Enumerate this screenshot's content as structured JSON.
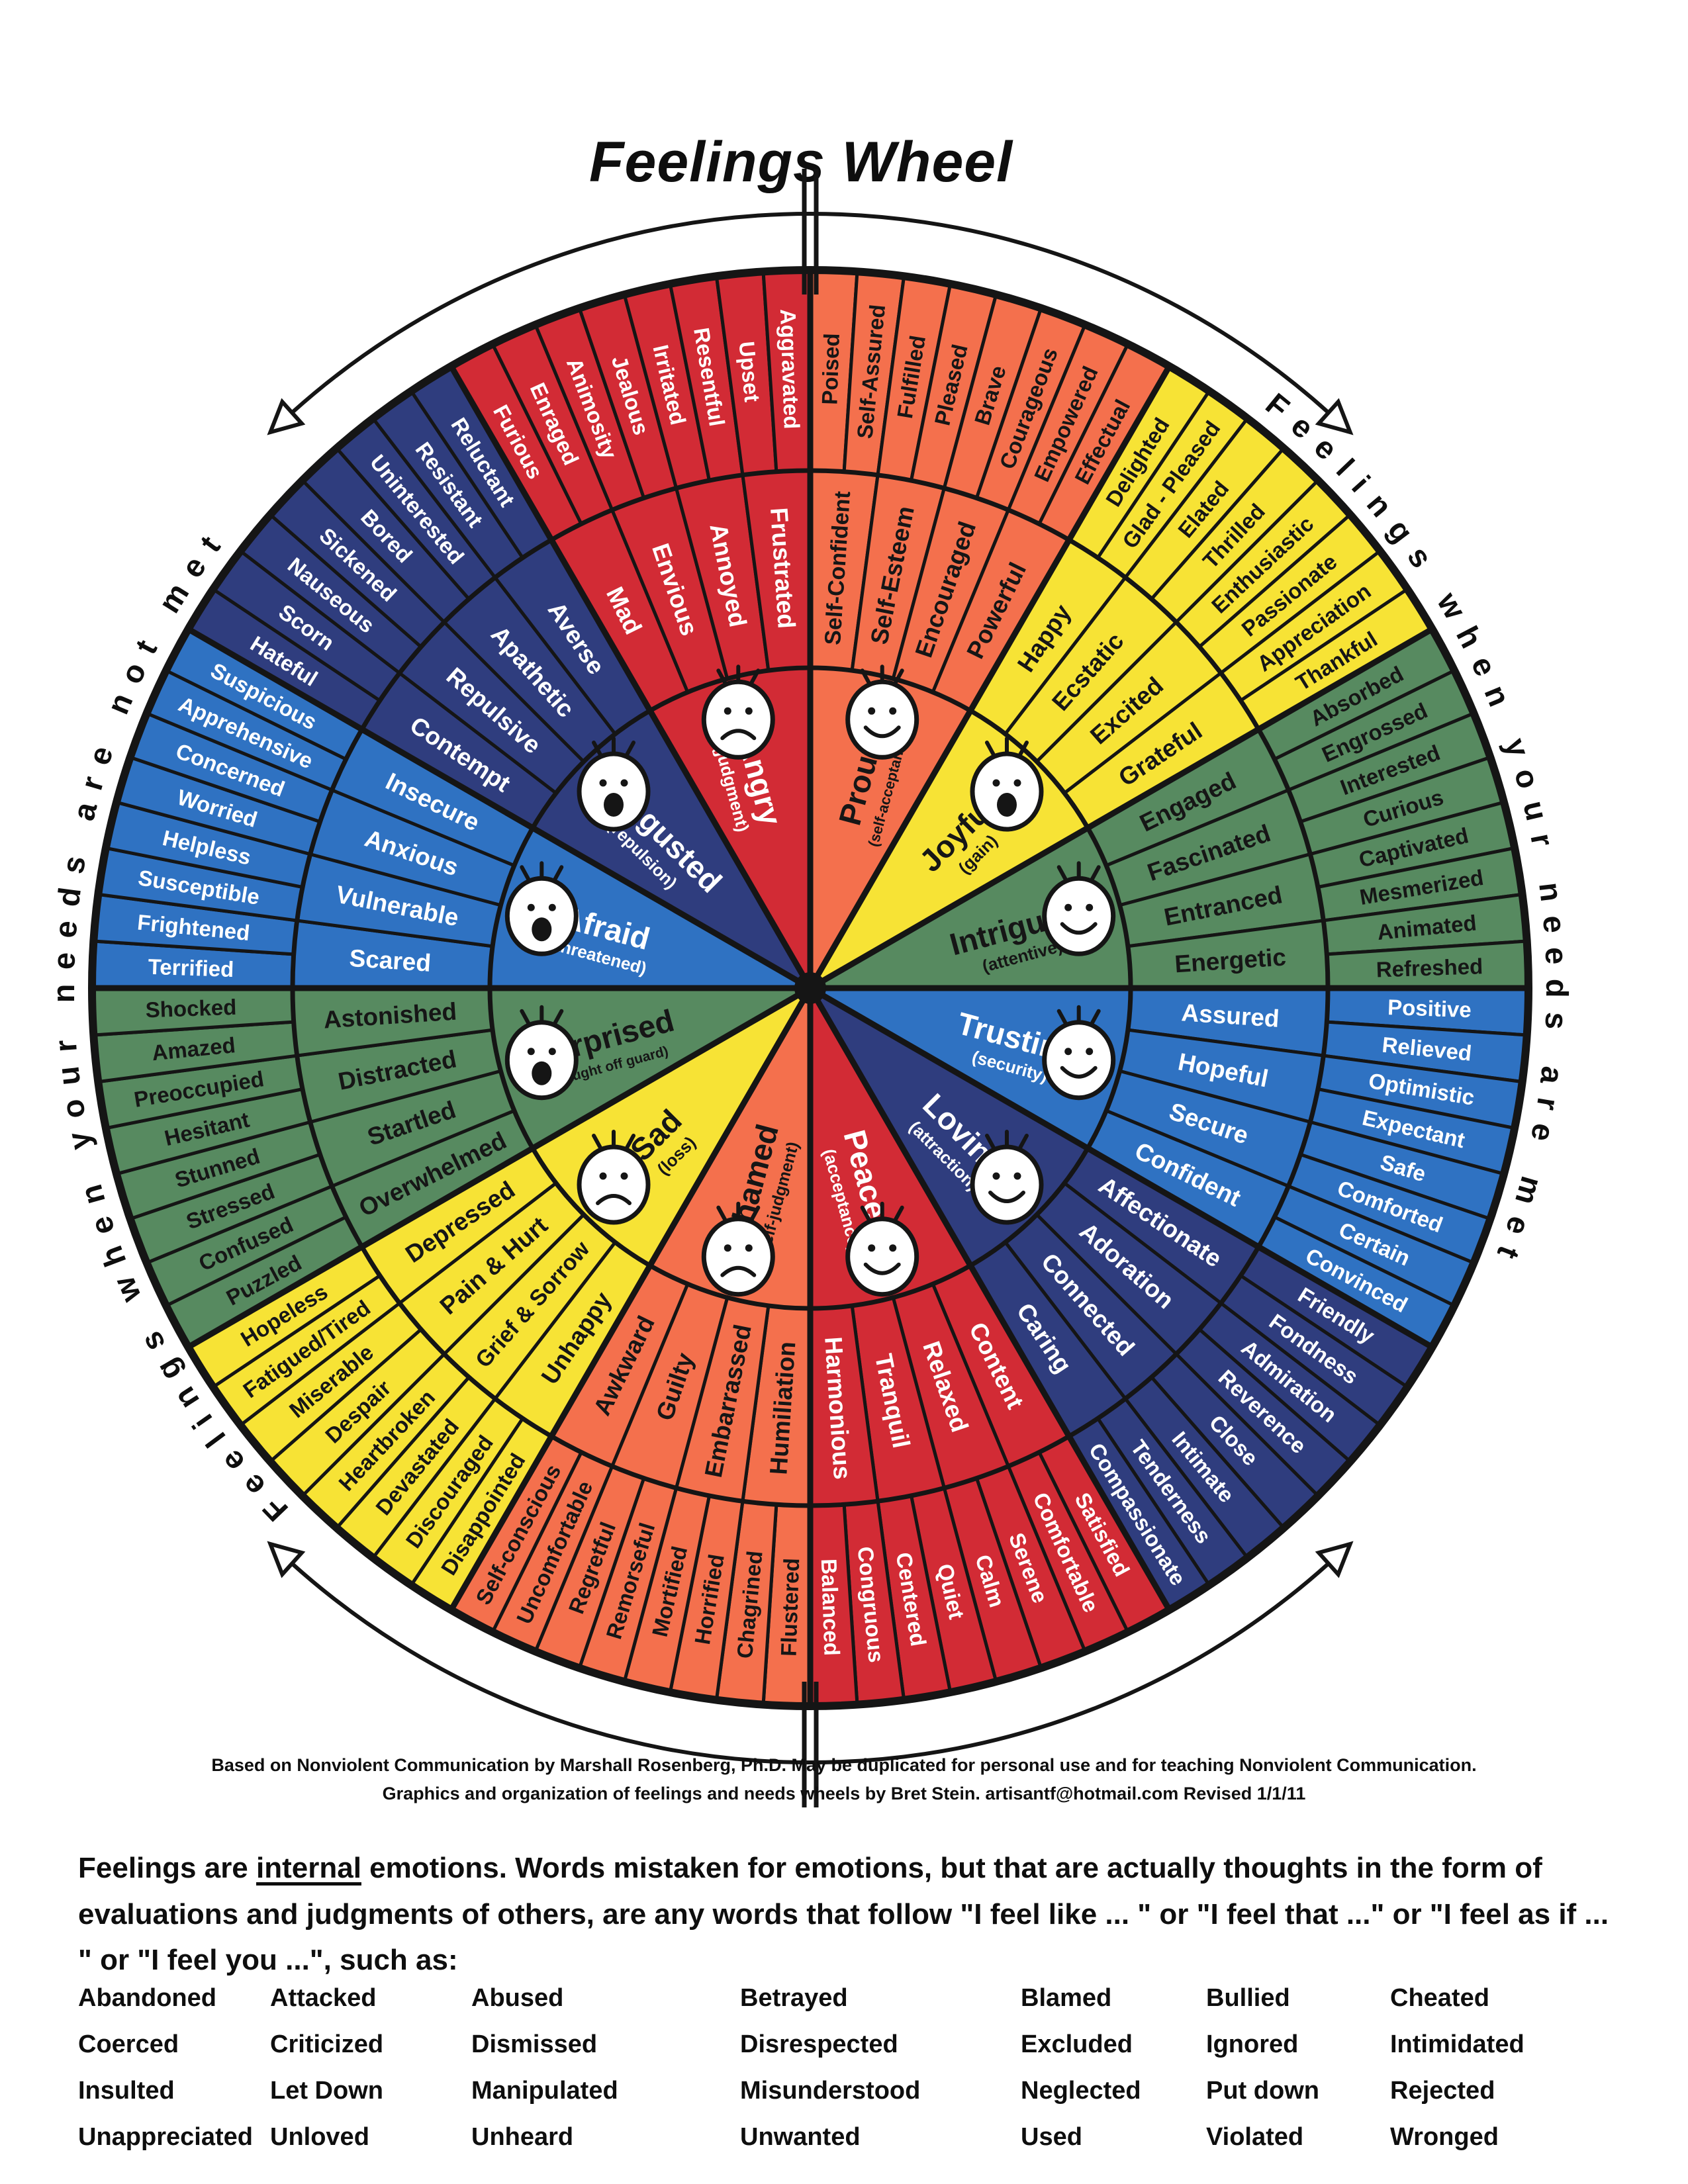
{
  "title": "Feelings Wheel",
  "left_arc_label": "Feelings when your needs are not met",
  "right_arc_label": "Feelings when your needs are met",
  "colors": {
    "red": "#D22B35",
    "orange": "#F4704D",
    "yellow": "#F7E335",
    "green": "#578A60",
    "blue": "#2F72C2",
    "navy": "#2F3D7E",
    "outline": "#151515",
    "paper": "#FFFFFF"
  },
  "wheel": {
    "sectors": [
      {
        "id": "proud",
        "core": "Proud",
        "note": "(self-acceptance)",
        "color": "orange",
        "ink": "dark",
        "face": "smile",
        "middle": [
          "Self-Confident",
          "Self-Esteem",
          "Encouraged",
          "Powerful"
        ],
        "outer": [
          "Poised",
          "Self-Assured",
          "Fulfilled",
          "Pleased",
          "Brave",
          "Courageous",
          "Empowered",
          "Effectual"
        ]
      },
      {
        "id": "joyful",
        "core": "Joyful",
        "note": "(gain)",
        "color": "yellow",
        "ink": "dark",
        "face": "open",
        "middle": [
          "Happy",
          "Ecstatic",
          "Excited",
          "Grateful"
        ],
        "outer": [
          "Delighted",
          "Glad - Pleased",
          "Elated",
          "Thrilled",
          "Enthusiastic",
          "Passionate",
          "Appreciation",
          "Thankful"
        ]
      },
      {
        "id": "intrigued",
        "core": "Intrigued",
        "note": "(attentive)",
        "color": "green",
        "ink": "dark",
        "face": "smile",
        "middle": [
          "Engaged",
          "Fascinated",
          "Entranced",
          "Energetic"
        ],
        "outer": [
          "Absorbed",
          "Engrossed",
          "Interested",
          "Curious",
          "Captivated",
          "Mesmerized",
          "Animated",
          "Refreshed"
        ]
      },
      {
        "id": "trusting",
        "core": "Trusting",
        "note": "(security)",
        "color": "blue",
        "ink": "light",
        "face": "smile",
        "middle": [
          "Assured",
          "Hopeful",
          "Secure",
          "Confident"
        ],
        "outer": [
          "Positive",
          "Relieved",
          "Optimistic",
          "Expectant",
          "Safe",
          "Comforted",
          "Certain",
          "Convinced"
        ]
      },
      {
        "id": "loving",
        "core": "Loving",
        "note": "(attraction)",
        "color": "navy",
        "ink": "light",
        "face": "smile",
        "middle": [
          "Affectionate",
          "Adoration",
          "Connected",
          "Caring"
        ],
        "outer": [
          "Friendly",
          "Fondness",
          "Admiration",
          "Reverence",
          "Close",
          "Intimate",
          "Tenderness",
          "Compassionate"
        ]
      },
      {
        "id": "peaceful",
        "core": "Peaceful",
        "note": "(acceptance)",
        "color": "red",
        "ink": "light",
        "face": "smile",
        "middle": [
          "Content",
          "Relaxed",
          "Tranquil",
          "Harmonious"
        ],
        "outer": [
          "Satisfied",
          "Comfortable",
          "Serene",
          "Calm",
          "Quiet",
          "Centered",
          "Congruous",
          "Balanced"
        ]
      },
      {
        "id": "ashamed",
        "core": "Ashamed",
        "note": "(self-judgment)",
        "color": "orange",
        "ink": "dark",
        "face": "frown",
        "middle": [
          "Humiliation",
          "Embarrassed",
          "Guilty",
          "Awkward"
        ],
        "outer": [
          "Flustered",
          "Chagrined",
          "Horrified",
          "Mortified",
          "Remorseful",
          "Regretful",
          "Uncomfortable",
          "Self-conscious"
        ]
      },
      {
        "id": "sad",
        "core": "Sad",
        "note": "(loss)",
        "color": "yellow",
        "ink": "dark",
        "face": "frown",
        "middle": [
          "Unhappy",
          "Grief & Sorrow",
          "Pain & Hurt",
          "Depressed"
        ],
        "outer": [
          "Disappointed",
          "Discouraged",
          "Devastated",
          "Heartbroken",
          "Despair",
          "Miserable",
          "Fatigued/Tired",
          "Hopeless"
        ]
      },
      {
        "id": "surprised",
        "core": "Surprised",
        "note": "(caught off guard)",
        "color": "green",
        "ink": "dark",
        "face": "open",
        "middle": [
          "Overwhelmed",
          "Startled",
          "Distracted",
          "Astonished"
        ],
        "outer": [
          "Puzzled",
          "Confused",
          "Stressed",
          "Stunned",
          "Hesitant",
          "Preoccupied",
          "Amazed",
          "Shocked"
        ]
      },
      {
        "id": "afraid",
        "core": "Afraid",
        "note": "(threatened)",
        "color": "blue",
        "ink": "light",
        "face": "open",
        "middle": [
          "Scared",
          "Vulnerable",
          "Anxious",
          "Insecure"
        ],
        "outer": [
          "Terrified",
          "Frightened",
          "Susceptible",
          "Helpless",
          "Worried",
          "Concerned",
          "Apprehensive",
          "Suspicious"
        ]
      },
      {
        "id": "disgusted",
        "core": "Disgusted",
        "note": "(repulsion)",
        "color": "navy",
        "ink": "light",
        "face": "open",
        "middle": [
          "Contempt",
          "Repulsive",
          "Apathetic",
          "Averse"
        ],
        "outer": [
          "Hateful",
          "Scorn",
          "Nauseous",
          "Sickened",
          "Bored",
          "Uninterested",
          "Resistant",
          "Reluctant"
        ]
      },
      {
        "id": "angry",
        "core": "Angry",
        "note": "(judgment)",
        "color": "red",
        "ink": "light",
        "face": "frown",
        "middle": [
          "Mad",
          "Envious",
          "Annoyed",
          "Frustrated"
        ],
        "outer": [
          "Furious",
          "Enraged",
          "Animosity",
          "Jealous",
          "Irritated",
          "Resentful",
          "Upset",
          "Aggravated"
        ]
      }
    ]
  },
  "attribution": {
    "line1": "Based on Nonviolent Communication by Marshall Rosenberg, Ph.D.  May be duplicated for personal use and for teaching Nonviolent Communication.",
    "line2": "Graphics and organization of feelings and needs wheels by Bret Stein.  artisantf@hotmail.com   Revised 1/1/11"
  },
  "footer": {
    "para_before": "Feelings are ",
    "para_underlined": "internal",
    "para_after": " emotions.  Words mistaken for emotions, but that are actually thoughts in the form of evaluations and judgments of others, are any words that follow \"I feel like ... \" or \"I feel that ...\" or \"I feel as if ... \" or \"I feel you ...\", such as:",
    "word_columns": [
      [
        "Abandoned",
        "Coerced",
        "Insulted",
        "Unappreciated"
      ],
      [
        "Attacked",
        "Criticized",
        "Let Down",
        "Unloved"
      ],
      [
        "Abused",
        "Dismissed",
        "Manipulated",
        "Unheard"
      ],
      [
        "Betrayed",
        "Disrespected",
        "Misunderstood",
        "Unwanted"
      ],
      [
        "Blamed",
        "Excluded",
        "Neglected",
        "Used"
      ],
      [
        "Bullied",
        "Ignored",
        "Put down",
        "Violated"
      ],
      [
        "Cheated",
        "Intimidated",
        "Rejected",
        "Wronged"
      ]
    ]
  }
}
